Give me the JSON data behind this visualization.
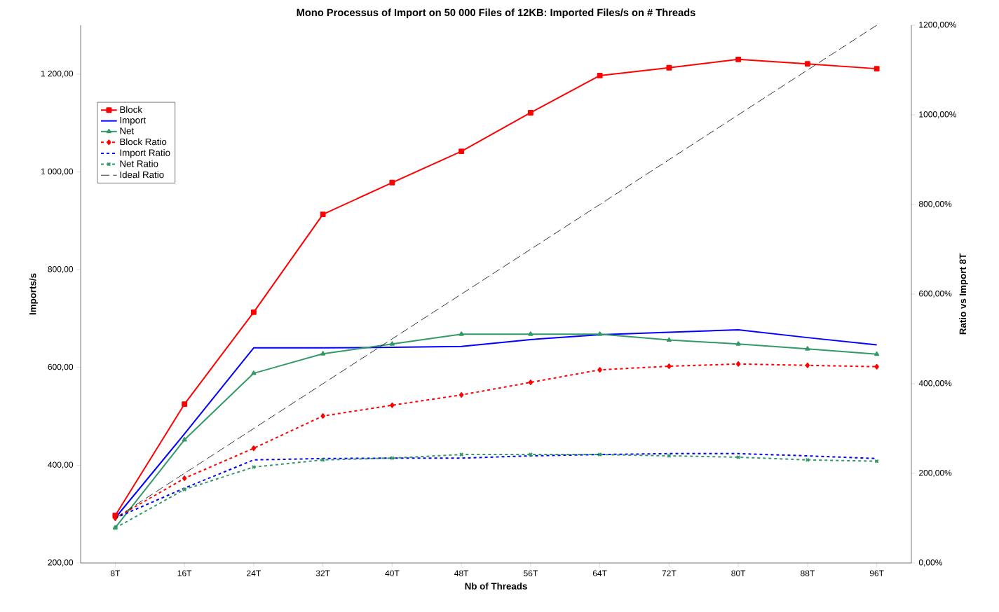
{
  "chart_data": {
    "type": "line",
    "title": "Mono Processus of Import on 50 000 Files of 12KB: Imported Files/s on # Threads",
    "xlabel": "Nb of Threads",
    "ylabel": "Imports/s",
    "y2label": "Ratio vs Import 8T",
    "categories": [
      "8T",
      "16T",
      "24T",
      "32T",
      "40T",
      "48T",
      "56T",
      "64T",
      "72T",
      "80T",
      "88T",
      "96T"
    ],
    "ylim": [
      200,
      1300
    ],
    "yticks": [
      {
        "value": 200,
        "label": "200,00"
      },
      {
        "value": 400,
        "label": "400,00"
      },
      {
        "value": 600,
        "label": "600,00"
      },
      {
        "value": 800,
        "label": "800,00"
      },
      {
        "value": 1000,
        "label": "1 000,00"
      },
      {
        "value": 1200,
        "label": "1 200,00"
      }
    ],
    "y2lim": [
      0,
      1200
    ],
    "y2ticks": [
      {
        "value": 0,
        "label": "0,00%"
      },
      {
        "value": 200,
        "label": "200,00%"
      },
      {
        "value": 400,
        "label": "400,00%"
      },
      {
        "value": 600,
        "label": "600,00%"
      },
      {
        "value": 800,
        "label": "800,00%"
      },
      {
        "value": 1000,
        "label": "1000,00%"
      },
      {
        "value": 1200,
        "label": "1200,00%"
      }
    ],
    "legend": "top left",
    "series": [
      {
        "name": "Block",
        "color": "#ff0000",
        "marker": "square",
        "line_style": "solid",
        "values": [
          297,
          525,
          713,
          913,
          978,
          1042,
          1121,
          1197,
          1213,
          1230,
          1221,
          1211
        ]
      },
      {
        "name": "Import",
        "color": "#0000ff",
        "marker": "none",
        "line_style": "solid",
        "values": [
          292,
          464,
          640,
          640,
          641,
          643,
          657,
          667,
          672,
          677,
          661,
          646
        ]
      },
      {
        "name": "Net",
        "color": "#339966",
        "marker": "triangle",
        "line_style": "solid",
        "values": [
          272,
          452,
          588,
          628,
          648,
          668,
          668,
          668,
          656,
          648,
          638,
          627
        ]
      },
      {
        "name": "Block Ratio",
        "color": "#ff0000",
        "marker": "diamond",
        "line_style": "dashed",
        "axis": "y2",
        "values": [
          100,
          189,
          256,
          328,
          352,
          375,
          403,
          431,
          439,
          444,
          441,
          438
        ]
      },
      {
        "name": "Import Ratio",
        "color": "#0000ff",
        "marker": "none",
        "line_style": "dashed",
        "axis": "y2",
        "values": [
          100,
          167,
          230,
          233,
          234,
          234,
          239,
          242,
          244,
          244,
          239,
          233
        ]
      },
      {
        "name": "Net Ratio",
        "color": "#339966",
        "marker": "cross",
        "line_style": "dashed",
        "axis": "y2",
        "values": [
          78,
          164,
          214,
          230,
          234,
          242,
          242,
          242,
          239,
          236,
          230,
          227
        ]
      },
      {
        "name": "Ideal Ratio",
        "color": "#000000",
        "marker": "none",
        "line_style": "longdash",
        "axis": "y2",
        "values": [
          100,
          200,
          300,
          400,
          500,
          600,
          700,
          800,
          900,
          1000,
          1100,
          1200
        ]
      }
    ]
  }
}
